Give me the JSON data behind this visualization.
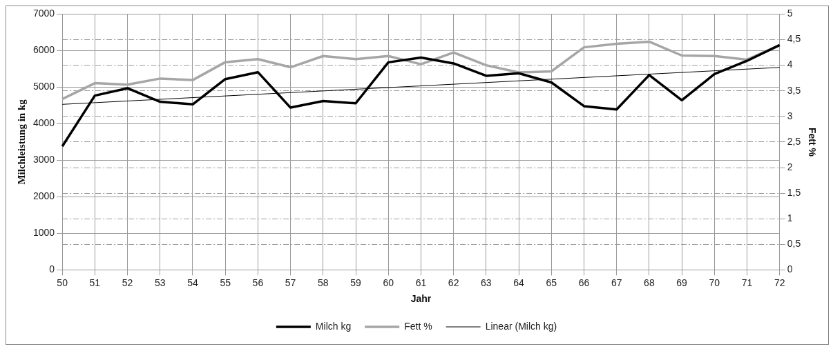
{
  "chart_data": {
    "type": "line",
    "xlabel": "Jahr",
    "ylabel": "Milchleistung in kg",
    "y2label": "Fett %",
    "categories": [
      "50",
      "51",
      "52",
      "53",
      "54",
      "55",
      "56",
      "57",
      "58",
      "59",
      "60",
      "61",
      "62",
      "63",
      "64",
      "65",
      "66",
      "67",
      "68",
      "69",
      "70",
      "71",
      "72"
    ],
    "series": [
      {
        "name": "Milch kg",
        "color": "#000000",
        "values": [
          3380,
          4770,
          4970,
          4600,
          4530,
          5220,
          5410,
          4440,
          4620,
          4560,
          5680,
          5810,
          5650,
          5310,
          5380,
          5130,
          4480,
          4390,
          5330,
          4640,
          5360,
          5720,
          6150
        ]
      },
      {
        "name": "Fett %",
        "color": "#a6a6a6",
        "axis": "y2",
        "values": [
          3.34,
          3.65,
          3.62,
          3.74,
          3.71,
          4.06,
          4.12,
          3.96,
          4.18,
          4.12,
          4.18,
          4.02,
          4.25,
          4.0,
          3.86,
          3.88,
          4.35,
          4.42,
          4.46,
          4.19,
          4.18,
          4.11,
          4.39
        ]
      },
      {
        "name": "Linear (Milch kg)",
        "color": "#000000",
        "line_style": "solid",
        "values": [
          4530,
          null,
          null,
          null,
          null,
          null,
          null,
          null,
          null,
          null,
          null,
          null,
          null,
          null,
          null,
          null,
          null,
          null,
          null,
          null,
          null,
          null,
          5540
        ]
      }
    ],
    "ylim": [
      0,
      7000
    ],
    "yticks": [
      0,
      1000,
      2000,
      3000,
      4000,
      5000,
      6000,
      7000
    ],
    "y2lim": [
      0,
      5
    ],
    "y2ticks": [
      0,
      {
        "value": 0.5,
        "label": "0,5"
      },
      1,
      {
        "value": 1.5,
        "label": "1,5"
      },
      2,
      {
        "value": 2.5,
        "label": "2,5"
      },
      3,
      {
        "value": 3.5,
        "label": "3,5"
      },
      4,
      {
        "value": 4.5,
        "label": "4,5"
      },
      5
    ],
    "grid": true,
    "legend": "bottom",
    "marker": "none"
  }
}
